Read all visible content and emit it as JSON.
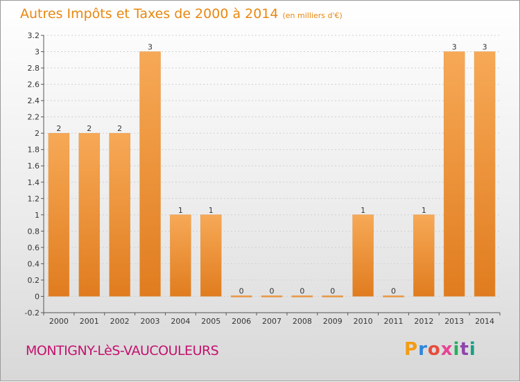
{
  "header": {
    "title": "Autres Impôts et Taxes de 2000 à 2014",
    "unit": "(en milliers d'€)"
  },
  "footer": {
    "place": "MONTIGNY-LèS-VAUCOULEURS",
    "brand": "Proxiti",
    "brand_colors": [
      "#f39c12",
      "#2e86de",
      "#e74c3c",
      "#e84393",
      "#27ae60",
      "#8e44ad",
      "#16a085"
    ]
  },
  "colors": {
    "bar_light": "#f7a956",
    "bar_dark": "#e07c1f",
    "grid": "#cfcfcf"
  },
  "chart_data": {
    "type": "bar",
    "title": "Autres Impôts et Taxes de 2000 à 2014",
    "ylabel": "en milliers d'€",
    "xlabel": "",
    "categories": [
      "2000",
      "2001",
      "2002",
      "2003",
      "2004",
      "2005",
      "2006",
      "2007",
      "2008",
      "2009",
      "2010",
      "2011",
      "2012",
      "2013",
      "2014"
    ],
    "values": [
      2,
      2,
      2,
      3,
      1,
      1,
      0,
      0,
      0,
      0,
      1,
      0,
      1,
      3,
      3
    ],
    "value_labels": [
      "2",
      "2",
      "2",
      "3",
      "1",
      "1",
      "0",
      "0",
      "0",
      "0",
      "1",
      "0",
      "1",
      "3",
      "3"
    ],
    "ylim": [
      -0.2,
      3.2
    ],
    "yticks": [
      -0.2,
      0,
      0.2,
      0.4,
      0.6,
      0.8,
      1,
      1.2,
      1.4,
      1.6,
      1.8,
      2,
      2.2,
      2.4,
      2.6,
      2.8,
      3,
      3.2
    ],
    "ytick_labels": [
      "-0.2",
      "0",
      "0.2",
      "0.4",
      "0.6",
      "0.8",
      "1",
      "1.2",
      "1.4",
      "1.6",
      "1.8",
      "2",
      "2.2",
      "2.4",
      "2.6",
      "2.8",
      "3",
      "3.2"
    ],
    "grid": true
  }
}
